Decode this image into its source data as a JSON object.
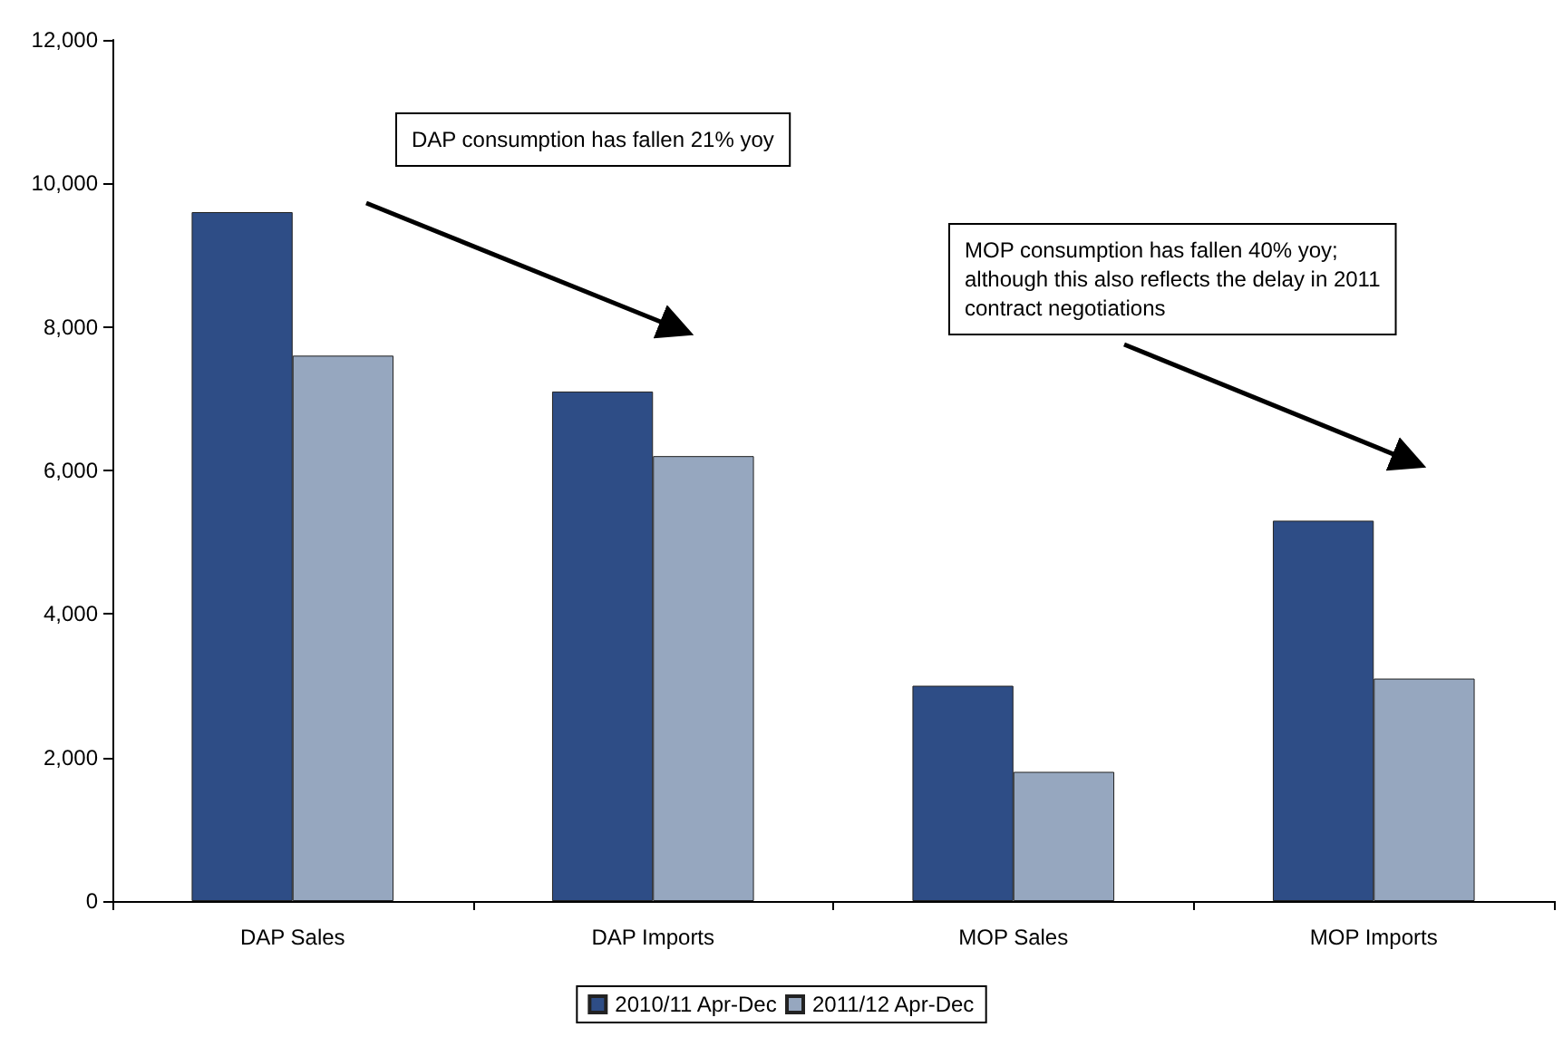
{
  "chart_data": {
    "type": "bar",
    "categories": [
      "DAP Sales",
      "DAP Imports",
      "MOP Sales",
      "MOP Imports"
    ],
    "series": [
      {
        "name": "2010/11 Apr-Dec",
        "color": "#2e4d86",
        "values": [
          9600,
          7100,
          3000,
          5300
        ]
      },
      {
        "name": "2011/12 Apr-Dec",
        "color": "#96a7bf",
        "values": [
          7600,
          6200,
          1800,
          3100
        ]
      }
    ],
    "ylim": [
      0,
      12000
    ],
    "yticks": [
      0,
      {
        "value": 2000,
        "label": "2,000"
      },
      {
        "value": 4000,
        "label": "4,000"
      },
      {
        "value": 6000,
        "label": "6,000"
      },
      {
        "value": 8000,
        "label": "8,000"
      },
      {
        "value": 10000,
        "label": "10,000"
      },
      {
        "value": 12000,
        "label": "12,000"
      }
    ],
    "grid": false,
    "legend": "bottom",
    "annotations": [
      "DAP consumption has fallen 21% yoy",
      "MOP consumption has fallen 40% yoy;\nalthough this also reflects the delay in 2011\ncontract negotiations"
    ]
  }
}
